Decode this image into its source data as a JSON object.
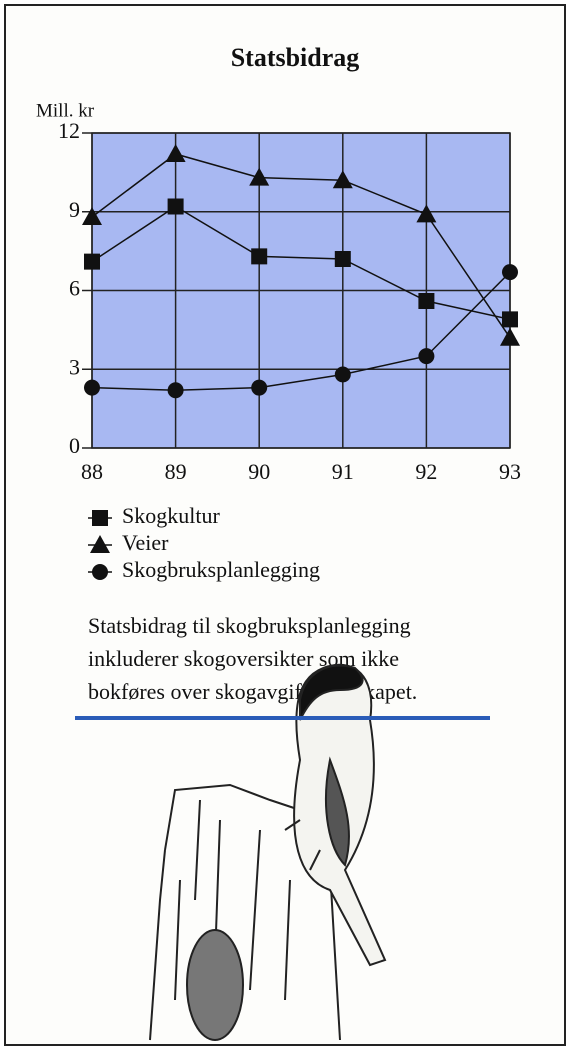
{
  "chart_data": {
    "type": "line",
    "title": "Statsbidrag",
    "ylabel": "Mill. kr",
    "x": [
      88,
      89,
      90,
      91,
      92,
      93
    ],
    "xlim": [
      88,
      93
    ],
    "xticks": [
      88,
      89,
      90,
      91,
      92,
      93
    ],
    "ylim": [
      0,
      12
    ],
    "yticks": [
      0,
      3,
      6,
      9,
      12
    ],
    "grid": true,
    "plot_background": "#a8b8f2",
    "series": [
      {
        "name": "Skogkultur",
        "color": "#111111",
        "marker": "square",
        "values": [
          7.1,
          9.2,
          7.3,
          7.2,
          5.6,
          4.9
        ]
      },
      {
        "name": "Veier",
        "color": "#111111",
        "marker": "triangle",
        "values": [
          8.8,
          11.2,
          10.3,
          10.2,
          8.9,
          4.2
        ]
      },
      {
        "name": "Skogbruksplanlegging",
        "color": "#111111",
        "marker": "circle",
        "values": [
          2.3,
          2.2,
          2.3,
          2.8,
          3.5,
          6.7
        ]
      }
    ],
    "annotation": [
      "Statsbidrag til skogbruksplanlegging",
      "inkluderer skogoversikter som ikke",
      "bokføres over skogavgiftsregnskapet."
    ]
  }
}
